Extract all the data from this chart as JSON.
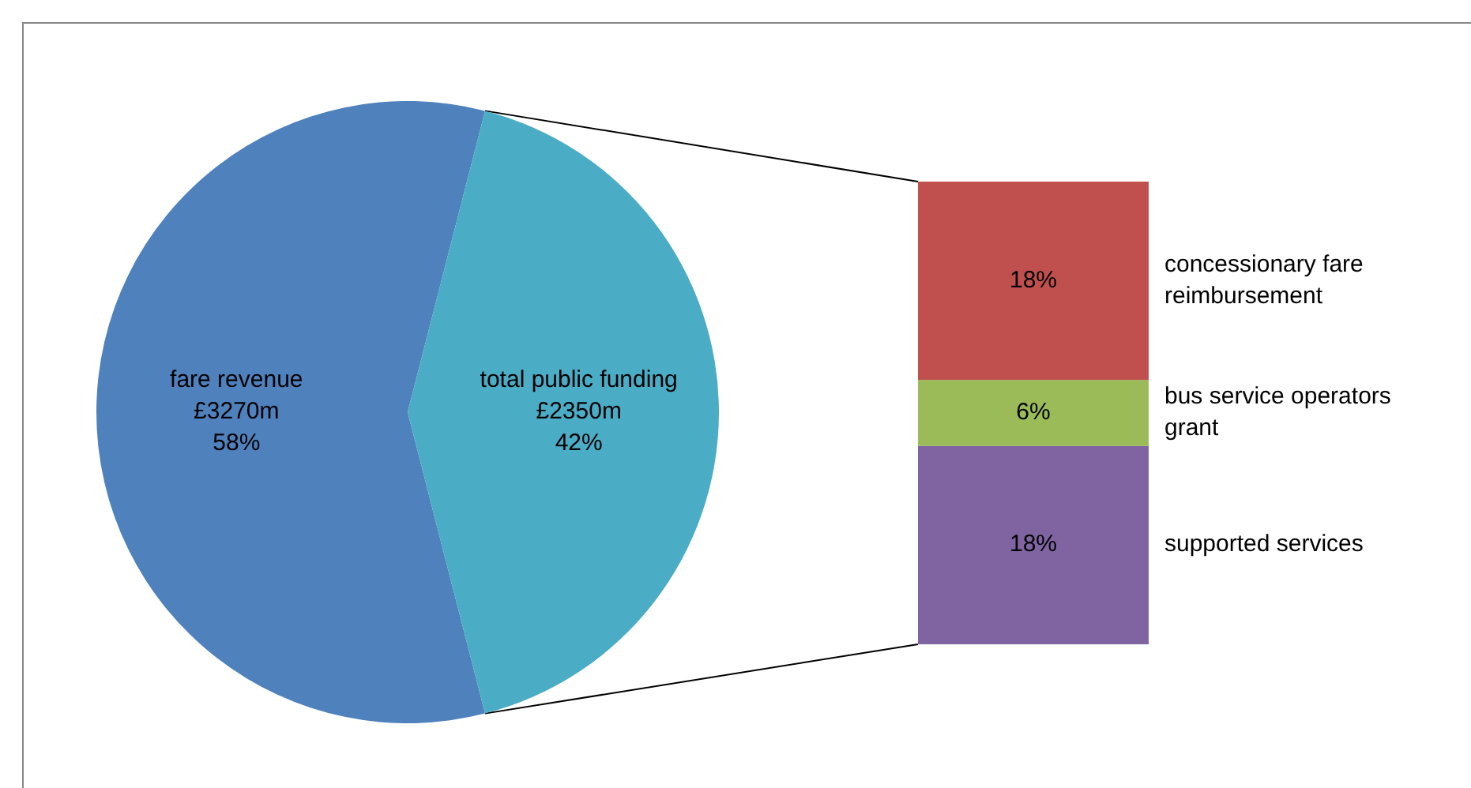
{
  "chart_data": [
    {
      "type": "pie",
      "categories": [
        "fare revenue",
        "total public funding"
      ],
      "values": [
        58,
        42
      ],
      "value_labels": [
        "58%",
        "42%"
      ],
      "annotations": [
        "£3270m",
        "£2350m"
      ],
      "colors": [
        "#4f81bd",
        "#4bacc6"
      ]
    },
    {
      "type": "bar",
      "stacked": true,
      "categories": [
        null
      ],
      "series": [
        {
          "name": "supported services",
          "color": "#8064a2",
          "values": [
            18
          ],
          "value_labels": [
            "18%"
          ]
        },
        {
          "name": "bus service operators grant",
          "color": "#9bbb59",
          "values": [
            6
          ],
          "value_labels": [
            "6%"
          ]
        },
        {
          "name": "concessionary fare reimbursement",
          "color": "#c0504d",
          "values": [
            18
          ],
          "value_labels": [
            "18%"
          ]
        }
      ]
    }
  ]
}
